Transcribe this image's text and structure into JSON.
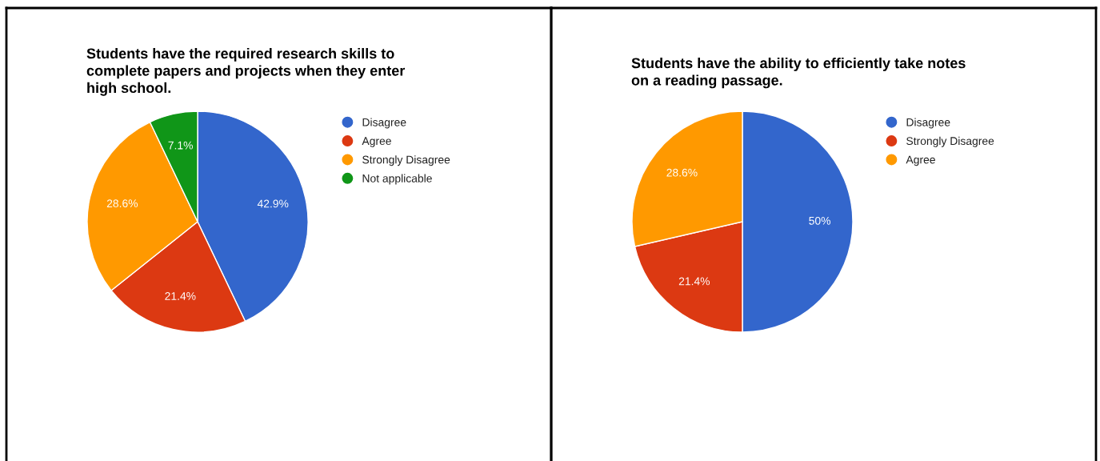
{
  "chart_data": [
    {
      "type": "pie",
      "title": "Students have the required research skills to\ncomplete papers and projects when they enter\nhigh school.",
      "categories": [
        "Disagree",
        "Agree",
        "Strongly Disagree",
        "Not applicable"
      ],
      "values": [
        42.9,
        21.4,
        28.6,
        7.1
      ],
      "colors": [
        "#3366cc",
        "#dc3912",
        "#ff9900",
        "#109618"
      ],
      "value_labels": [
        "42.9%",
        "21.4%",
        "28.6%",
        "7.1%"
      ],
      "legend": "right"
    },
    {
      "type": "pie",
      "title": "Students have the ability to efficiently take notes\non a reading passage.",
      "categories": [
        "Disagree",
        "Strongly Disagree",
        "Agree"
      ],
      "values": [
        50,
        21.4,
        28.6
      ],
      "colors": [
        "#3366cc",
        "#dc3912",
        "#ff9900"
      ],
      "value_labels": [
        "50%",
        "21.4%",
        "28.6%"
      ],
      "legend": "right"
    }
  ]
}
